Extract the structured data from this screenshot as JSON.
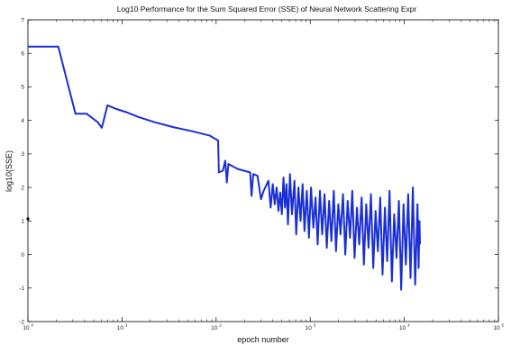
{
  "chart_data": {
    "type": "line",
    "title": "Log10 Performance for the Sum Squared Error (SSE) of Neural Network Scattering Expr",
    "xlabel": "epoch number",
    "ylabel": "log10(SSE)",
    "xscale": "log",
    "xlim": [
      1,
      100000
    ],
    "ylim": [
      -2,
      7
    ],
    "x_ticks": [
      {
        "value": 1,
        "base": "10",
        "exp": "0"
      },
      {
        "value": 10,
        "base": "10",
        "exp": "1"
      },
      {
        "value": 100,
        "base": "10",
        "exp": "2"
      },
      {
        "value": 1000,
        "base": "10",
        "exp": "3"
      },
      {
        "value": 10000,
        "base": "10",
        "exp": "4"
      },
      {
        "value": 100000,
        "base": "10",
        "exp": "5"
      }
    ],
    "y_ticks": [
      "-2",
      "-1",
      "0",
      "1",
      "2",
      "3",
      "4",
      "5",
      "6",
      "7"
    ],
    "grid": false,
    "line_color": "#1a2fd6",
    "series": [
      {
        "values": [
          [
            1,
            6.2
          ],
          [
            2.1,
            6.2
          ],
          [
            3.2,
            4.2
          ],
          [
            4.2,
            4.2
          ],
          [
            5.5,
            3.95
          ],
          [
            6.1,
            3.78
          ],
          [
            7,
            4.45
          ],
          [
            8.5,
            4.35
          ],
          [
            11,
            4.25
          ],
          [
            15,
            4.1
          ],
          [
            22,
            3.95
          ],
          [
            35,
            3.8
          ],
          [
            55,
            3.68
          ],
          [
            85,
            3.55
          ],
          [
            105,
            3.4
          ],
          [
            107,
            2.45
          ],
          [
            118,
            2.5
          ],
          [
            125,
            2.8
          ],
          [
            130,
            2.15
          ],
          [
            135,
            2.7
          ],
          [
            170,
            2.55
          ],
          [
            230,
            2.45
          ],
          [
            238,
            1.75
          ],
          [
            248,
            2.4
          ],
          [
            275,
            2.35
          ],
          [
            300,
            1.65
          ],
          [
            320,
            1.9
          ],
          [
            360,
            2.2
          ],
          [
            380,
            1.4
          ],
          [
            400,
            2.1
          ],
          [
            420,
            1.5
          ],
          [
            440,
            2.0
          ],
          [
            460,
            1.3
          ],
          [
            480,
            1.85
          ],
          [
            500,
            1.2
          ],
          [
            520,
            2.3
          ],
          [
            540,
            1.4
          ],
          [
            560,
            2.1
          ],
          [
            580,
            0.9
          ],
          [
            610,
            2.4
          ],
          [
            640,
            1.2
          ],
          [
            680,
            2.2
          ],
          [
            710,
            0.6
          ],
          [
            750,
            2.0
          ],
          [
            790,
            1.0
          ],
          [
            830,
            2.1
          ],
          [
            870,
            0.7
          ],
          [
            920,
            1.9
          ],
          [
            970,
            0.5
          ],
          [
            1020,
            2.0
          ],
          [
            1080,
            0.8
          ],
          [
            1140,
            1.7
          ],
          [
            1200,
            0.3
          ],
          [
            1270,
            1.9
          ],
          [
            1340,
            0.6
          ],
          [
            1420,
            1.8
          ],
          [
            1500,
            0.2
          ],
          [
            1590,
            1.6
          ],
          [
            1680,
            0.4
          ],
          [
            1780,
            1.9
          ],
          [
            1880,
            0.1
          ],
          [
            1990,
            1.5
          ],
          [
            2100,
            0.6
          ],
          [
            2230,
            1.8
          ],
          [
            2360,
            0.0
          ],
          [
            2500,
            1.6
          ],
          [
            2650,
            0.5
          ],
          [
            2800,
            1.9
          ],
          [
            2960,
            -0.1
          ],
          [
            3140,
            1.4
          ],
          [
            3320,
            0.3
          ],
          [
            3520,
            1.7
          ],
          [
            3720,
            -0.3
          ],
          [
            3940,
            1.5
          ],
          [
            4170,
            0.2
          ],
          [
            4420,
            1.8
          ],
          [
            4680,
            -0.4
          ],
          [
            4950,
            1.3
          ],
          [
            5240,
            0.1
          ],
          [
            5550,
            1.7
          ],
          [
            5870,
            -0.6
          ],
          [
            6220,
            1.4
          ],
          [
            6580,
            -0.2
          ],
          [
            6970,
            1.9
          ],
          [
            7380,
            -0.8
          ],
          [
            7810,
            1.2
          ],
          [
            8270,
            -0.1
          ],
          [
            8760,
            1.6
          ],
          [
            9270,
            -1.05
          ],
          [
            9810,
            1.5
          ],
          [
            10390,
            -0.3
          ],
          [
            11000,
            1.8
          ],
          [
            11650,
            -0.7
          ],
          [
            12330,
            2.0
          ],
          [
            13050,
            -0.9
          ],
          [
            13810,
            1.5
          ],
          [
            14200,
            -0.4
          ],
          [
            14500,
            1.0
          ],
          [
            14700,
            0.3
          ]
        ]
      }
    ]
  }
}
